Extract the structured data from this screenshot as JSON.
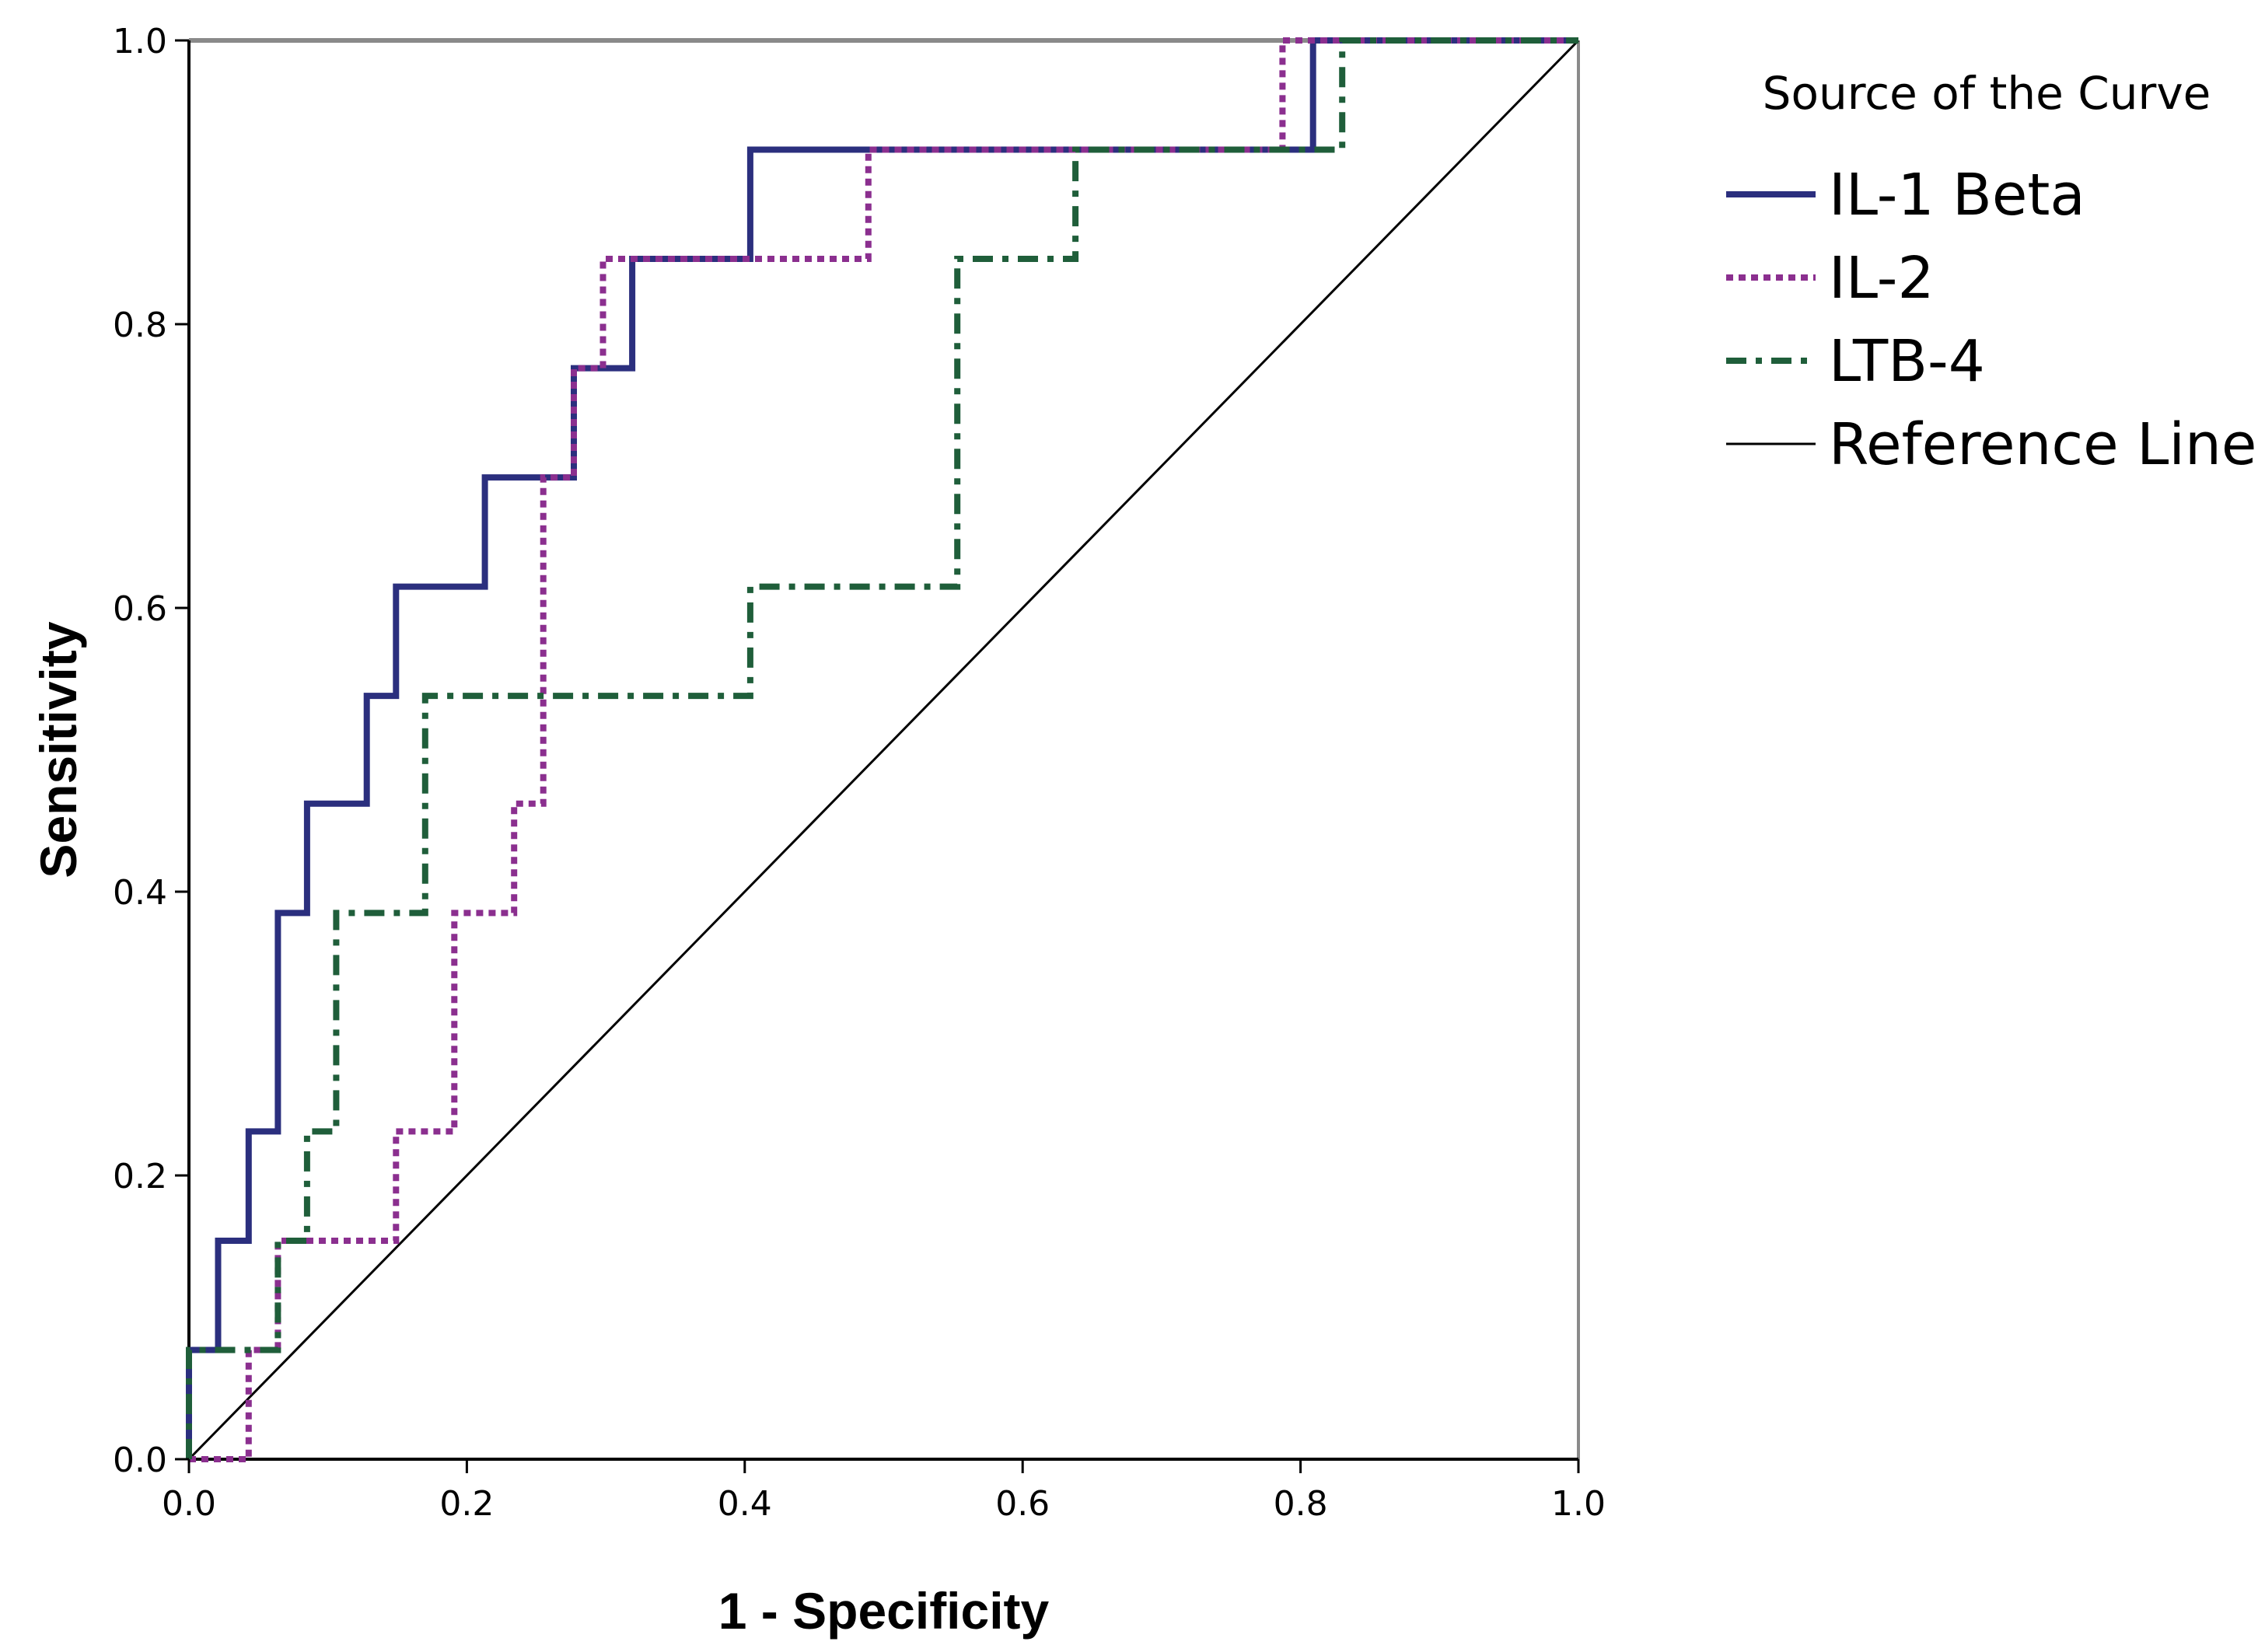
{
  "chart_data": {
    "type": "line",
    "xlabel": "1 - Specificity",
    "ylabel": "Sensitivity",
    "xlim": [
      0,
      1
    ],
    "ylim": [
      0,
      1
    ],
    "x_ticks": [
      "0.0",
      "0.2",
      "0.4",
      "0.6",
      "0.8",
      "1.0"
    ],
    "y_ticks": [
      "0.0",
      "0.2",
      "0.4",
      "0.6",
      "0.8",
      "1.0"
    ],
    "grid": false,
    "legend": {
      "title": "Source of the Curve",
      "placement": "right"
    },
    "series": [
      {
        "name": "IL-1 Beta",
        "style": "solid",
        "color": "#2b2f7e",
        "x": [
          0,
          0,
          0.021,
          0.021,
          0.043,
          0.043,
          0.064,
          0.064,
          0.085,
          0.085,
          0.128,
          0.128,
          0.149,
          0.149,
          0.213,
          0.213,
          0.277,
          0.277,
          0.319,
          0.319,
          0.404,
          0.404,
          0.809,
          0.809,
          1.0
        ],
        "y": [
          0,
          0.077,
          0.077,
          0.154,
          0.154,
          0.231,
          0.231,
          0.385,
          0.385,
          0.462,
          0.462,
          0.538,
          0.538,
          0.615,
          0.615,
          0.692,
          0.692,
          0.769,
          0.769,
          0.846,
          0.846,
          0.923,
          0.923,
          1.0,
          1.0
        ]
      },
      {
        "name": "IL-2",
        "style": "dotted",
        "color": "#8b2f8f",
        "x": [
          0,
          0.043,
          0.043,
          0.064,
          0.064,
          0.149,
          0.149,
          0.191,
          0.191,
          0.234,
          0.234,
          0.255,
          0.255,
          0.277,
          0.277,
          0.298,
          0.298,
          0.489,
          0.489,
          0.787,
          0.787,
          1.0
        ],
        "y": [
          0,
          0,
          0.077,
          0.077,
          0.154,
          0.154,
          0.231,
          0.231,
          0.385,
          0.385,
          0.462,
          0.462,
          0.692,
          0.692,
          0.769,
          0.769,
          0.846,
          0.846,
          0.923,
          0.923,
          1.0,
          1.0
        ]
      },
      {
        "name": "LTB-4",
        "style": "dashdot",
        "color": "#1f5e3a",
        "x": [
          0,
          0,
          0.064,
          0.064,
          0.085,
          0.085,
          0.106,
          0.106,
          0.17,
          0.17,
          0.404,
          0.404,
          0.553,
          0.553,
          0.638,
          0.638,
          0.83,
          0.83,
          1.0
        ],
        "y": [
          0,
          0.077,
          0.077,
          0.154,
          0.154,
          0.231,
          0.231,
          0.385,
          0.385,
          0.538,
          0.538,
          0.615,
          0.615,
          0.846,
          0.846,
          0.923,
          0.923,
          1.0,
          1.0
        ]
      },
      {
        "name": "Reference Line",
        "style": "solid-thin",
        "color": "#000000",
        "x": [
          0,
          1
        ],
        "y": [
          0,
          1
        ]
      }
    ]
  }
}
